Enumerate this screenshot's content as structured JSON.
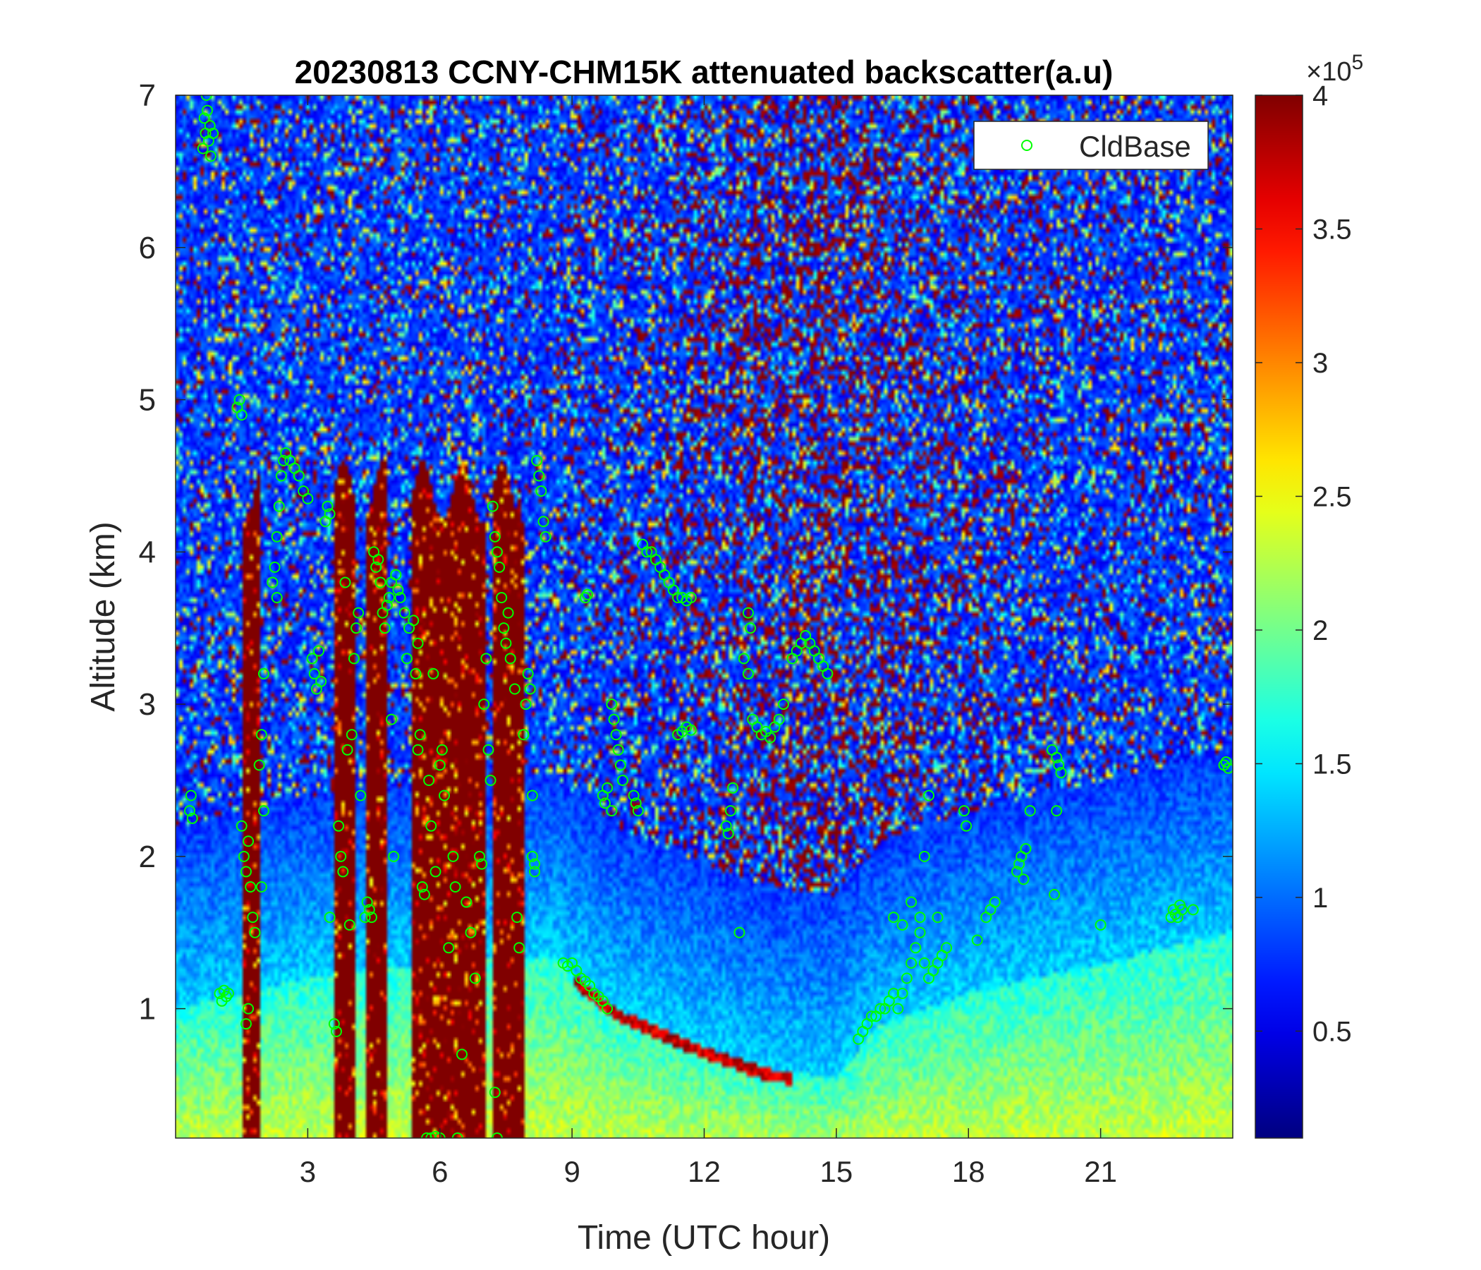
{
  "chart_data": {
    "type": "heatmap",
    "title": "20230813 CCNY-CHM15K attenuated backscatter(a.u)",
    "xlabel": "Time (UTC hour)",
    "ylabel": "Altitude (km)",
    "xlim": [
      0,
      24
    ],
    "ylim": [
      0.15,
      7
    ],
    "xticks": [
      3,
      6,
      9,
      12,
      15,
      18,
      21
    ],
    "yticks": [
      1,
      2,
      3,
      4,
      5,
      6,
      7
    ],
    "colorbar": {
      "colormap": "jet",
      "clim": [
        0.1,
        4
      ],
      "ticks": [
        0.5,
        1,
        1.5,
        2,
        2.5,
        3,
        3.5,
        4
      ],
      "exponent_label": "×10",
      "exponent": "5"
    },
    "legend": {
      "position": "top-right",
      "entries": [
        {
          "name": "CldBase",
          "marker": "circle",
          "color": "#00ff00"
        }
      ]
    },
    "features": {
      "boundary_layer_top_km": [
        [
          0,
          1.0
        ],
        [
          1.5,
          1.1
        ],
        [
          3,
          1.2
        ],
        [
          6,
          1.3
        ],
        [
          8.5,
          1.35
        ],
        [
          10,
          1.0
        ],
        [
          12,
          0.75
        ],
        [
          13.5,
          0.6
        ],
        [
          15,
          0.55
        ],
        [
          16,
          0.9
        ],
        [
          17,
          1.0
        ],
        [
          18,
          1.1
        ],
        [
          21,
          1.3
        ],
        [
          24,
          1.5
        ]
      ],
      "dense_cloud_columns_hours": [
        [
          1.55,
          1.9
        ],
        [
          3.6,
          4.1
        ],
        [
          4.3,
          4.8
        ],
        [
          5.4,
          7.0
        ],
        [
          7.2,
          7.9
        ]
      ],
      "upper_noise_strength": [
        [
          0,
          0.15
        ],
        [
          4,
          0.2
        ],
        [
          8,
          0.25
        ],
        [
          11,
          0.45
        ],
        [
          13,
          0.75
        ],
        [
          14.5,
          0.85
        ],
        [
          17,
          0.6
        ],
        [
          20,
          0.35
        ],
        [
          24,
          0.3
        ]
      ]
    },
    "series": [
      {
        "name": "CldBase",
        "points": [
          [
            0.62,
            6.65
          ],
          [
            0.65,
            6.85
          ],
          [
            0.68,
            6.75
          ],
          [
            0.7,
            7.0
          ],
          [
            0.72,
            6.9
          ],
          [
            0.75,
            6.7
          ],
          [
            0.78,
            6.8
          ],
          [
            0.8,
            6.6
          ],
          [
            0.85,
            6.75
          ],
          [
            0.32,
            2.3
          ],
          [
            0.35,
            2.4
          ],
          [
            0.38,
            2.25
          ],
          [
            1.0,
            1.1
          ],
          [
            1.05,
            1.05
          ],
          [
            1.1,
            1.12
          ],
          [
            1.15,
            1.08
          ],
          [
            1.2,
            1.1
          ],
          [
            1.4,
            4.95
          ],
          [
            1.45,
            5.0
          ],
          [
            1.5,
            4.9
          ],
          [
            1.5,
            2.2
          ],
          [
            1.55,
            2.0
          ],
          [
            1.6,
            1.9
          ],
          [
            1.65,
            2.1
          ],
          [
            1.7,
            1.8
          ],
          [
            1.75,
            1.6
          ],
          [
            1.8,
            1.5
          ],
          [
            1.6,
            0.9
          ],
          [
            1.65,
            1.0
          ],
          [
            1.9,
            2.6
          ],
          [
            1.95,
            2.8
          ],
          [
            2.0,
            3.2
          ],
          [
            1.95,
            1.8
          ],
          [
            2.0,
            2.3
          ],
          [
            2.2,
            3.8
          ],
          [
            2.25,
            3.9
          ],
          [
            2.3,
            4.1
          ],
          [
            2.35,
            4.3
          ],
          [
            2.4,
            4.5
          ],
          [
            2.45,
            4.6
          ],
          [
            2.5,
            4.65
          ],
          [
            2.6,
            4.6
          ],
          [
            2.7,
            4.55
          ],
          [
            2.8,
            4.5
          ],
          [
            2.9,
            4.4
          ],
          [
            3.0,
            4.35
          ],
          [
            2.3,
            3.7
          ],
          [
            3.1,
            3.3
          ],
          [
            3.15,
            3.2
          ],
          [
            3.2,
            3.1
          ],
          [
            3.25,
            3.35
          ],
          [
            3.3,
            3.15
          ],
          [
            3.4,
            4.2
          ],
          [
            3.45,
            4.3
          ],
          [
            3.5,
            4.25
          ],
          [
            3.5,
            1.6
          ],
          [
            3.6,
            0.9
          ],
          [
            3.65,
            0.85
          ],
          [
            3.7,
            2.2
          ],
          [
            3.75,
            2.0
          ],
          [
            3.8,
            1.9
          ],
          [
            3.85,
            3.8
          ],
          [
            3.9,
            2.7
          ],
          [
            3.95,
            1.55
          ],
          [
            4.0,
            2.8
          ],
          [
            4.05,
            3.3
          ],
          [
            4.1,
            3.5
          ],
          [
            4.15,
            3.6
          ],
          [
            4.2,
            2.4
          ],
          [
            4.3,
            1.6
          ],
          [
            4.35,
            1.7
          ],
          [
            4.4,
            1.65
          ],
          [
            4.45,
            1.6
          ],
          [
            4.5,
            4.0
          ],
          [
            4.55,
            3.9
          ],
          [
            4.6,
            3.95
          ],
          [
            4.65,
            3.8
          ],
          [
            4.7,
            3.6
          ],
          [
            4.75,
            3.5
          ],
          [
            4.8,
            3.65
          ],
          [
            4.85,
            3.7
          ],
          [
            4.9,
            3.8
          ],
          [
            4.9,
            2.9
          ],
          [
            4.95,
            2.0
          ],
          [
            5.0,
            3.85
          ],
          [
            5.05,
            3.75
          ],
          [
            5.1,
            3.7
          ],
          [
            5.2,
            3.6
          ],
          [
            5.25,
            3.3
          ],
          [
            5.3,
            3.5
          ],
          [
            5.4,
            3.55
          ],
          [
            5.45,
            3.2
          ],
          [
            5.5,
            3.4
          ],
          [
            5.5,
            2.7
          ],
          [
            5.55,
            2.8
          ],
          [
            5.6,
            1.8
          ],
          [
            5.65,
            1.75
          ],
          [
            5.7,
            0.15
          ],
          [
            5.8,
            0.15
          ],
          [
            5.9,
            0.16
          ],
          [
            6.0,
            0.15
          ],
          [
            5.75,
            2.5
          ],
          [
            5.8,
            2.2
          ],
          [
            5.85,
            3.2
          ],
          [
            5.9,
            1.9
          ],
          [
            6.0,
            2.6
          ],
          [
            6.05,
            2.7
          ],
          [
            6.1,
            2.4
          ],
          [
            6.2,
            1.4
          ],
          [
            6.3,
            2.0
          ],
          [
            6.35,
            1.8
          ],
          [
            6.4,
            0.15
          ],
          [
            6.5,
            0.7
          ],
          [
            6.6,
            1.7
          ],
          [
            6.7,
            1.5
          ],
          [
            6.8,
            1.2
          ],
          [
            6.9,
            2.0
          ],
          [
            6.95,
            1.95
          ],
          [
            7.0,
            3.0
          ],
          [
            7.05,
            3.3
          ],
          [
            7.1,
            2.7
          ],
          [
            7.15,
            2.5
          ],
          [
            7.2,
            4.3
          ],
          [
            7.25,
            4.1
          ],
          [
            7.3,
            4.0
          ],
          [
            7.35,
            3.9
          ],
          [
            7.4,
            3.7
          ],
          [
            7.45,
            3.5
          ],
          [
            7.5,
            3.4
          ],
          [
            7.55,
            3.6
          ],
          [
            7.6,
            3.3
          ],
          [
            7.7,
            3.1
          ],
          [
            7.75,
            1.6
          ],
          [
            7.8,
            1.4
          ],
          [
            7.25,
            0.45
          ],
          [
            7.3,
            0.15
          ],
          [
            7.9,
            2.8
          ],
          [
            7.95,
            3.0
          ],
          [
            8.0,
            3.2
          ],
          [
            8.05,
            3.1
          ],
          [
            8.1,
            2.4
          ],
          [
            8.15,
            1.9
          ],
          [
            8.2,
            4.6
          ],
          [
            8.25,
            4.5
          ],
          [
            8.3,
            4.4
          ],
          [
            8.35,
            4.2
          ],
          [
            8.4,
            4.1
          ],
          [
            8.1,
            2.0
          ],
          [
            8.15,
            1.95
          ],
          [
            8.8,
            1.3
          ],
          [
            8.9,
            1.28
          ],
          [
            9.0,
            1.3
          ],
          [
            9.1,
            1.25
          ],
          [
            9.2,
            1.2
          ],
          [
            9.3,
            1.18
          ],
          [
            9.4,
            1.15
          ],
          [
            9.5,
            1.1
          ],
          [
            9.6,
            1.08
          ],
          [
            9.7,
            1.05
          ],
          [
            9.8,
            1.0
          ],
          [
            9.3,
            3.7
          ],
          [
            9.35,
            3.72
          ],
          [
            9.7,
            2.4
          ],
          [
            9.75,
            2.35
          ],
          [
            9.8,
            2.45
          ],
          [
            9.9,
            2.3
          ],
          [
            9.9,
            3.0
          ],
          [
            9.95,
            2.9
          ],
          [
            10.0,
            2.8
          ],
          [
            10.05,
            2.7
          ],
          [
            10.1,
            2.6
          ],
          [
            10.15,
            2.5
          ],
          [
            10.4,
            2.4
          ],
          [
            10.45,
            2.35
          ],
          [
            10.5,
            2.3
          ],
          [
            10.6,
            4.05
          ],
          [
            10.7,
            4.0
          ],
          [
            10.8,
            4.0
          ],
          [
            10.9,
            3.95
          ],
          [
            11.0,
            3.9
          ],
          [
            11.1,
            3.85
          ],
          [
            11.2,
            3.8
          ],
          [
            11.3,
            3.75
          ],
          [
            11.4,
            3.7
          ],
          [
            11.5,
            3.7
          ],
          [
            11.6,
            3.68
          ],
          [
            11.7,
            3.7
          ],
          [
            11.4,
            2.8
          ],
          [
            11.5,
            2.82
          ],
          [
            11.6,
            2.85
          ],
          [
            11.7,
            2.83
          ],
          [
            12.5,
            2.2
          ],
          [
            12.55,
            2.15
          ],
          [
            12.6,
            2.3
          ],
          [
            12.65,
            2.45
          ],
          [
            12.8,
            1.5
          ],
          [
            12.9,
            3.3
          ],
          [
            13.0,
            3.2
          ],
          [
            13.1,
            2.9
          ],
          [
            13.2,
            2.85
          ],
          [
            13.3,
            2.8
          ],
          [
            13.4,
            2.82
          ],
          [
            13.5,
            2.78
          ],
          [
            13.6,
            2.85
          ],
          [
            13.7,
            2.9
          ],
          [
            13.8,
            3.0
          ],
          [
            13.0,
            3.6
          ],
          [
            13.05,
            3.5
          ],
          [
            14.0,
            3.3
          ],
          [
            14.1,
            3.35
          ],
          [
            14.2,
            3.4
          ],
          [
            14.3,
            3.45
          ],
          [
            14.4,
            3.4
          ],
          [
            14.5,
            3.35
          ],
          [
            14.6,
            3.3
          ],
          [
            14.7,
            3.25
          ],
          [
            14.8,
            3.2
          ],
          [
            15.5,
            0.8
          ],
          [
            15.6,
            0.85
          ],
          [
            15.7,
            0.9
          ],
          [
            15.8,
            0.95
          ],
          [
            15.9,
            0.95
          ],
          [
            16.0,
            1.0
          ],
          [
            16.1,
            1.0
          ],
          [
            16.2,
            1.05
          ],
          [
            16.3,
            1.1
          ],
          [
            16.4,
            1.0
          ],
          [
            16.5,
            1.1
          ],
          [
            16.6,
            1.2
          ],
          [
            16.7,
            1.3
          ],
          [
            16.8,
            1.4
          ],
          [
            16.9,
            1.5
          ],
          [
            17.0,
            1.3
          ],
          [
            17.1,
            1.2
          ],
          [
            17.2,
            1.25
          ],
          [
            17.3,
            1.3
          ],
          [
            17.4,
            1.35
          ],
          [
            16.3,
            1.6
          ],
          [
            16.5,
            1.55
          ],
          [
            16.7,
            1.7
          ],
          [
            16.9,
            1.6
          ],
          [
            17.0,
            2.0
          ],
          [
            17.1,
            2.4
          ],
          [
            17.3,
            1.6
          ],
          [
            17.5,
            1.4
          ],
          [
            17.9,
            2.3
          ],
          [
            17.95,
            2.2
          ],
          [
            18.2,
            1.45
          ],
          [
            18.4,
            1.6
          ],
          [
            18.5,
            1.65
          ],
          [
            18.6,
            1.7
          ],
          [
            19.1,
            1.9
          ],
          [
            19.15,
            1.95
          ],
          [
            19.2,
            2.0
          ],
          [
            19.25,
            1.85
          ],
          [
            19.3,
            2.05
          ],
          [
            19.4,
            2.3
          ],
          [
            19.9,
            2.7
          ],
          [
            20.0,
            2.65
          ],
          [
            20.05,
            2.6
          ],
          [
            20.1,
            2.55
          ],
          [
            20.0,
            2.3
          ],
          [
            19.95,
            1.75
          ],
          [
            21.0,
            1.55
          ],
          [
            22.6,
            1.6
          ],
          [
            22.65,
            1.65
          ],
          [
            22.7,
            1.62
          ],
          [
            22.75,
            1.6
          ],
          [
            22.8,
            1.68
          ],
          [
            22.85,
            1.65
          ],
          [
            23.1,
            1.65
          ],
          [
            23.8,
            2.6
          ],
          [
            23.85,
            2.62
          ],
          [
            23.9,
            2.58
          ]
        ]
      }
    ]
  }
}
